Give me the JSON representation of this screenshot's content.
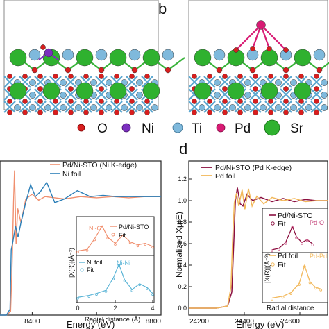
{
  "panels": {
    "b_label": "b",
    "d_label": "d"
  },
  "legend_atoms": {
    "items": [
      {
        "label": "O",
        "color": "#d81e1e"
      },
      {
        "label": "Ni",
        "color": "#7b2fbf"
      },
      {
        "label": "Ti",
        "color": "#7fb9dc"
      },
      {
        "label": "Pd",
        "color": "#d81b74"
      },
      {
        "label": "Sr",
        "color": "#2fb12f"
      }
    ]
  },
  "chart_data": [
    {
      "type": "line",
      "panel": "c",
      "title": "",
      "xlabel": "Energy (eV)",
      "ylabel": "",
      "xlim": [
        8300,
        8800
      ],
      "ylim": [
        0,
        1.3
      ],
      "x_ticks": [
        "8400",
        "8600",
        "8800"
      ],
      "legend": [
        "Pd/Ni-STO (Ni K-edge)",
        "Ni foil"
      ],
      "series": [
        {
          "name": "Pd/Ni-STO (Ni K-edge)",
          "color": "#f08f6e",
          "points": [
            [
              8300,
              0.0
            ],
            [
              8320,
              0.0
            ],
            [
              8333,
              0.03
            ],
            [
              8338,
              0.45
            ],
            [
              8342,
              0.95
            ],
            [
              8345,
              1.22
            ],
            [
              8350,
              0.6
            ],
            [
              8355,
              0.9
            ],
            [
              8365,
              0.78
            ],
            [
              8380,
              0.98
            ],
            [
              8400,
              1.02
            ],
            [
              8420,
              0.97
            ],
            [
              8440,
              1.0
            ],
            [
              8470,
              0.99
            ],
            [
              8500,
              0.98
            ],
            [
              8550,
              1.0
            ],
            [
              8600,
              0.99
            ],
            [
              8650,
              1.0
            ],
            [
              8700,
              0.99
            ],
            [
              8750,
              1.0
            ],
            [
              8800,
              1.0
            ]
          ]
        },
        {
          "name": "Ni foil",
          "color": "#2c7fb8",
          "points": [
            [
              8300,
              0.0
            ],
            [
              8320,
              0.0
            ],
            [
              8331,
              0.05
            ],
            [
              8335,
              0.55
            ],
            [
              8340,
              0.62
            ],
            [
              8348,
              0.75
            ],
            [
              8356,
              0.66
            ],
            [
              8365,
              0.78
            ],
            [
              8380,
              0.95
            ],
            [
              8395,
              1.1
            ],
            [
              8410,
              1.0
            ],
            [
              8425,
              1.04
            ],
            [
              8445,
              1.12
            ],
            [
              8470,
              0.95
            ],
            [
              8500,
              0.98
            ],
            [
              8540,
              1.05
            ],
            [
              8580,
              1.0
            ],
            [
              8620,
              1.01
            ],
            [
              8660,
              1.0
            ],
            [
              8720,
              1.0
            ],
            [
              8800,
              1.0
            ]
          ]
        }
      ]
    },
    {
      "type": "line",
      "panel": "c-inset",
      "title": "",
      "xlabel": "Radial distance (Å)",
      "ylabel": "|X(R)|(Å⁻³)",
      "xlim": [
        0,
        4
      ],
      "x_ticks": [
        "0",
        "2",
        "4"
      ],
      "top_legend": [
        "Pd/Ni-STO",
        "Fit"
      ],
      "bottom_legend": [
        "Ni foil",
        "Fit"
      ],
      "annotations": [
        "Ni-O",
        "Ni-Ni"
      ],
      "series": [
        {
          "name": "Pd/Ni-STO",
          "color": "#f08f6e",
          "points": [
            [
              0,
              0.1
            ],
            [
              0.5,
              0.15
            ],
            [
              0.9,
              0.5
            ],
            [
              1.3,
              0.92
            ],
            [
              1.6,
              0.55
            ],
            [
              2.0,
              0.35
            ],
            [
              2.4,
              0.62
            ],
            [
              2.8,
              0.4
            ],
            [
              3.2,
              0.3
            ],
            [
              3.6,
              0.35
            ],
            [
              4,
              0.25
            ]
          ]
        },
        {
          "name": "Ni foil",
          "color": "#5ab4d6",
          "points": [
            [
              0,
              0.1
            ],
            [
              0.6,
              0.15
            ],
            [
              1.0,
              0.2
            ],
            [
              1.5,
              0.28
            ],
            [
              1.9,
              0.6
            ],
            [
              2.2,
              0.95
            ],
            [
              2.5,
              0.55
            ],
            [
              2.9,
              0.3
            ],
            [
              3.3,
              0.45
            ],
            [
              3.7,
              0.35
            ],
            [
              4,
              0.2
            ]
          ]
        }
      ]
    },
    {
      "type": "line",
      "panel": "d",
      "title": "",
      "xlabel": "Energy (eV)",
      "ylabel": "Normalized Xμ(E)",
      "xlim": [
        24200,
        24700
      ],
      "ylim": [
        0.0,
        1.2
      ],
      "x_ticks": [
        "24200",
        "24400",
        "24600"
      ],
      "y_ticks": [
        "0.0",
        "0.2",
        "0.4",
        "0.6",
        "0.8",
        "1.0",
        "1.2"
      ],
      "legend": [
        "Pd/Ni-STO (Pd K-edge)",
        "Pd foil"
      ],
      "series": [
        {
          "name": "Pd/Ni-STO (Pd K-edge)",
          "color": "#8b0f3f",
          "points": [
            [
              24200,
              0.0
            ],
            [
              24300,
              0.0
            ],
            [
              24340,
              0.02
            ],
            [
              24355,
              0.15
            ],
            [
              24362,
              0.6
            ],
            [
              24368,
              1.0
            ],
            [
              24375,
              1.12
            ],
            [
              24385,
              0.97
            ],
            [
              24395,
              0.95
            ],
            [
              24410,
              1.06
            ],
            [
              24430,
              1.0
            ],
            [
              24460,
              1.03
            ],
            [
              24500,
              0.99
            ],
            [
              24540,
              1.02
            ],
            [
              24580,
              0.99
            ],
            [
              24620,
              1.01
            ],
            [
              24660,
              1.0
            ],
            [
              24700,
              1.0
            ]
          ]
        },
        {
          "name": "Pd foil",
          "color": "#f2b85a",
          "points": [
            [
              24200,
              0.0
            ],
            [
              24300,
              0.0
            ],
            [
              24340,
              0.02
            ],
            [
              24352,
              0.2
            ],
            [
              24358,
              0.65
            ],
            [
              24364,
              0.98
            ],
            [
              24372,
              1.07
            ],
            [
              24380,
              0.95
            ],
            [
              24392,
              1.1
            ],
            [
              24402,
              0.92
            ],
            [
              24415,
              1.11
            ],
            [
              24428,
              0.95
            ],
            [
              24445,
              1.04
            ],
            [
              24470,
              0.97
            ],
            [
              24500,
              1.03
            ],
            [
              24540,
              1.0
            ],
            [
              24580,
              1.02
            ],
            [
              24620,
              0.99
            ],
            [
              24660,
              1.0
            ],
            [
              24700,
              1.0
            ]
          ]
        }
      ]
    },
    {
      "type": "line",
      "panel": "d-inset",
      "title": "",
      "xlabel": "Radial distance",
      "ylabel": "|X(R)|(Å⁻³)",
      "xlim": [
        0,
        4
      ],
      "top_legend": [
        "Pd/Ni-STO",
        "Fit"
      ],
      "bottom_legend": [
        "Pd foil",
        "Fit"
      ],
      "annotations": [
        "Pd-O",
        "Pd-Pd"
      ],
      "series": [
        {
          "name": "Pd/Ni-STO",
          "color": "#8b0f3f",
          "points": [
            [
              0,
              0.05
            ],
            [
              0.5,
              0.1
            ],
            [
              1.0,
              0.3
            ],
            [
              1.5,
              0.85
            ],
            [
              1.8,
              0.5
            ],
            [
              2.2,
              0.3
            ],
            [
              2.6,
              0.4
            ],
            [
              3.0,
              0.25
            ]
          ]
        },
        {
          "name": "Pd foil",
          "color": "#f2b85a",
          "points": [
            [
              0,
              0.05
            ],
            [
              0.8,
              0.1
            ],
            [
              1.4,
              0.2
            ],
            [
              2.0,
              0.45
            ],
            [
              2.4,
              0.95
            ],
            [
              2.8,
              0.5
            ],
            [
              3.2,
              0.35
            ],
            [
              3.6,
              0.3
            ]
          ]
        }
      ]
    }
  ]
}
